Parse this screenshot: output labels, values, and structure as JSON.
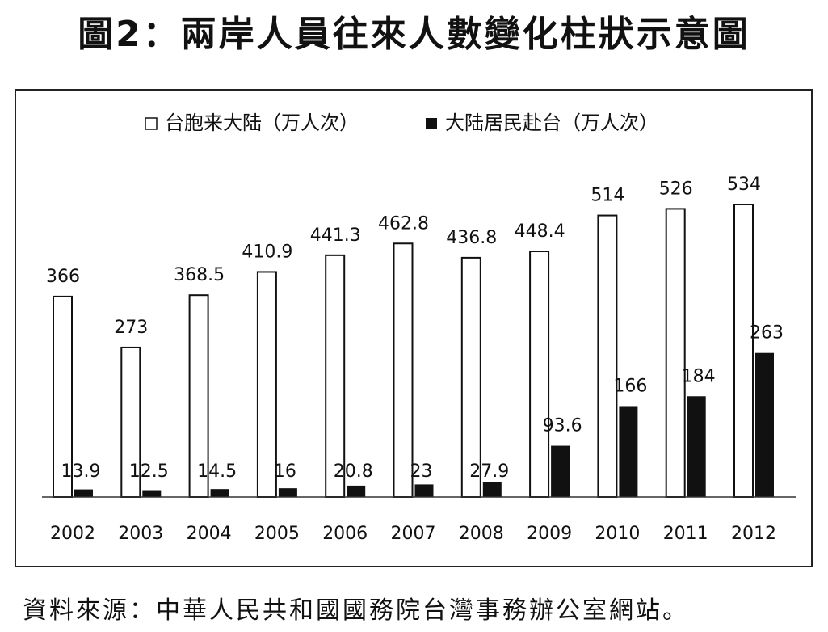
{
  "page": {
    "title": "圖2：兩岸人員往來人數變化柱狀示意圖",
    "source": "資料來源：中華人民共和國國務院台灣事務辦公室網站。"
  },
  "chart_data": {
    "type": "bar",
    "categories": [
      "2002",
      "2003",
      "2004",
      "2005",
      "2006",
      "2007",
      "2008",
      "2009",
      "2010",
      "2011",
      "2012"
    ],
    "series": [
      {
        "name": "台胞来大陆（万人次）",
        "values": [
          366,
          273,
          368.5,
          410.9,
          441.3,
          462.8,
          436.8,
          448.4,
          514,
          526,
          534
        ],
        "labels": [
          "366",
          "273",
          "368.5",
          "410.9",
          "441.3",
          "462.8",
          "436.8",
          "448.4",
          "514",
          "526",
          "534"
        ],
        "color": "#ffffff"
      },
      {
        "name": "大陆居民赴台（万人次）",
        "values": [
          13.9,
          12.5,
          14.5,
          16,
          20.8,
          23,
          27.9,
          93.6,
          166,
          184,
          263
        ],
        "labels": [
          "13.9",
          "12.5",
          "14.5",
          "16",
          "20.8",
          "23",
          "27.9",
          "93.6",
          "166",
          "184",
          "263"
        ],
        "color": "#111111"
      }
    ],
    "ylim": [
      0,
      534
    ],
    "grid": false,
    "legend_position": "top"
  }
}
